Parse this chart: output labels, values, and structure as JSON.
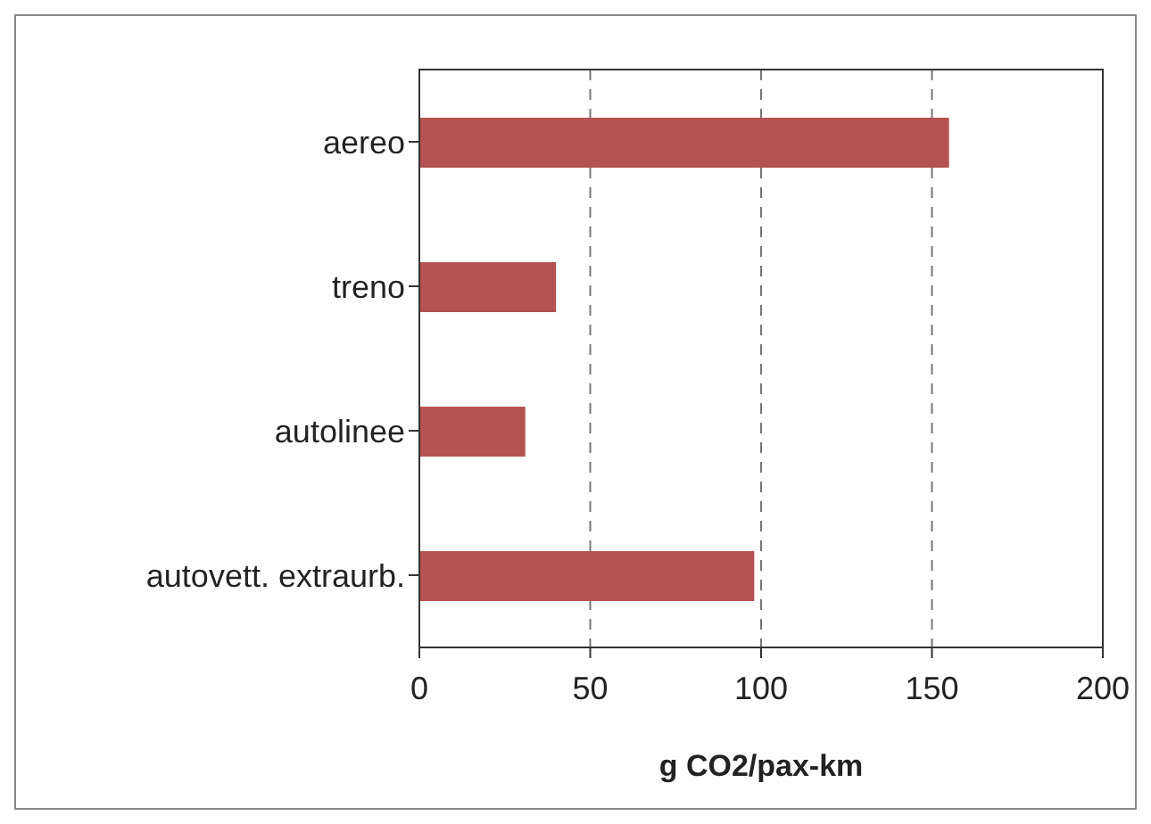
{
  "chart_data": {
    "type": "bar",
    "orientation": "horizontal",
    "xlabel": "g CO2/pax-km",
    "categories": [
      "aereo",
      "treno",
      "autolinee",
      "autovett. extraurb."
    ],
    "values": [
      155,
      40,
      31,
      98
    ],
    "color": "#b55252",
    "xlim": [
      0,
      200
    ],
    "xticks": [
      0,
      50,
      100,
      150,
      200
    ],
    "grid": "x"
  }
}
